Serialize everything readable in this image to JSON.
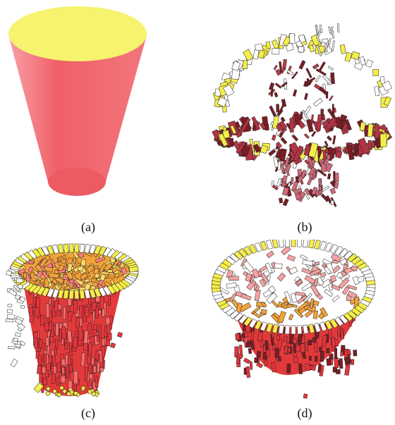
{
  "figure": {
    "panels": [
      {
        "id": "a",
        "label": "(a)",
        "content": "solid-cylinder"
      },
      {
        "id": "b",
        "label": "(b)",
        "content": "sparse-patch-cloud"
      },
      {
        "id": "c",
        "label": "(c)",
        "content": "dense-patch-cup-side"
      },
      {
        "id": "d",
        "label": "(d)",
        "content": "dense-patch-cup-top"
      }
    ],
    "colors": {
      "top_cap": "#f6f36e",
      "side": "#f06068",
      "side_light": "#f7a0a6",
      "patch_red": "#e23a3a",
      "patch_dark": "#7a1d25",
      "patch_yellow": "#f5ee4a",
      "patch_orange": "#f2a23a",
      "outline": "#222222"
    }
  }
}
